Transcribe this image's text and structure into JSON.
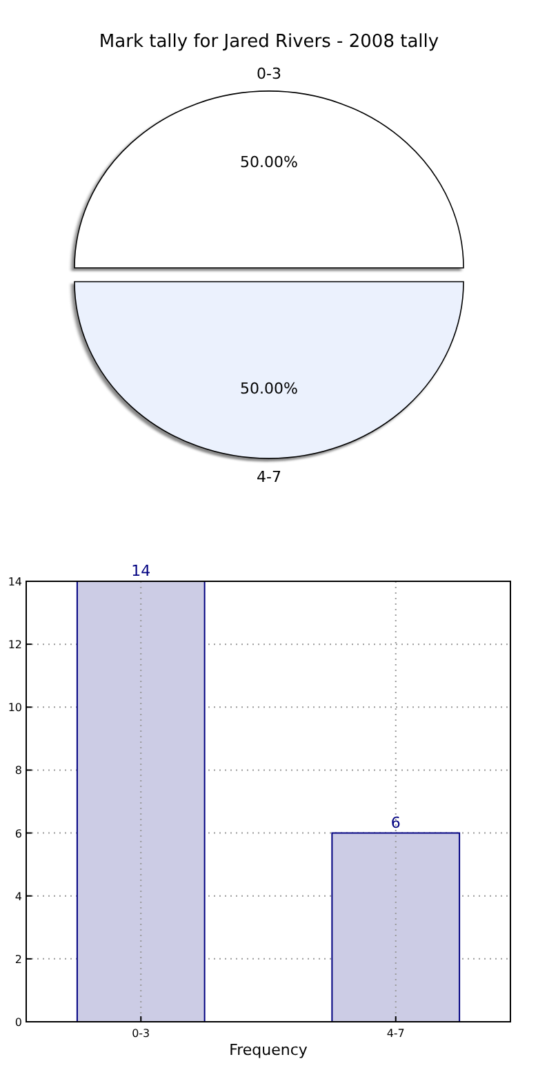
{
  "chart_data": [
    {
      "type": "pie",
      "title": "Mark tally for Jared Rivers - 2008 tally",
      "categories": [
        "0-3",
        "4-7"
      ],
      "values": [
        50,
        50
      ],
      "colors": [
        "#ffffff",
        "#ebf1fd"
      ],
      "value_labels": [
        "50.00%",
        "50.00%"
      ]
    },
    {
      "type": "bar",
      "categories": [
        "0-3",
        "4-7"
      ],
      "values": [
        14,
        6
      ],
      "color": "#ccccE5",
      "data_labels": true,
      "ylim": [
        0,
        14
      ],
      "yticks": [
        0,
        2,
        4,
        6,
        8,
        10,
        12,
        14
      ],
      "grid": true,
      "xlabel": "Frequency"
    }
  ]
}
